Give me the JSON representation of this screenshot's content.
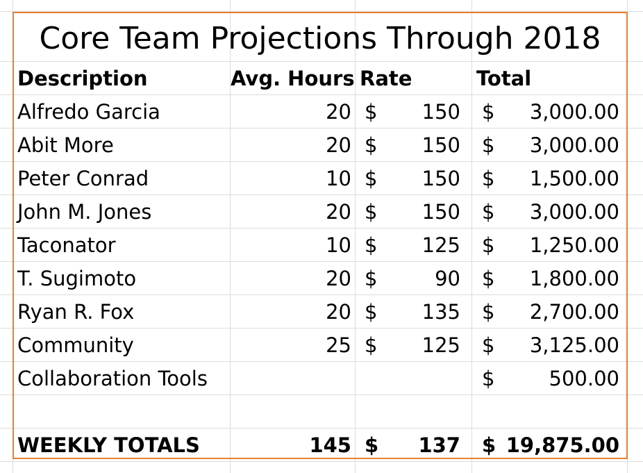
{
  "title": "Core Team Projections Through 2018",
  "colors": {
    "frame": "#ed7d31",
    "gridline": "#dcdcdc",
    "text": "#000000"
  },
  "headers": {
    "description": "Description",
    "avg_hours": "Avg. Hours",
    "rate": "Rate",
    "total": "Total"
  },
  "rows": [
    {
      "description": "Alfredo Garcia",
      "hours": "20",
      "rate_symbol": "$",
      "rate": "150",
      "total_symbol": "$",
      "total": "3,000.00"
    },
    {
      "description": "Abit More",
      "hours": "20",
      "rate_symbol": "$",
      "rate": "150",
      "total_symbol": "$",
      "total": "3,000.00"
    },
    {
      "description": "Peter Conrad",
      "hours": "10",
      "rate_symbol": "$",
      "rate": "150",
      "total_symbol": "$",
      "total": "1,500.00"
    },
    {
      "description": "John M. Jones",
      "hours": "20",
      "rate_symbol": "$",
      "rate": "150",
      "total_symbol": "$",
      "total": "3,000.00"
    },
    {
      "description": "Taconator",
      "hours": "10",
      "rate_symbol": "$",
      "rate": "125",
      "total_symbol": "$",
      "total": "1,250.00"
    },
    {
      "description": "T. Sugimoto",
      "hours": "20",
      "rate_symbol": "$",
      "rate": "90",
      "total_symbol": "$",
      "total": "1,800.00"
    },
    {
      "description": "Ryan R. Fox",
      "hours": "20",
      "rate_symbol": "$",
      "rate": "135",
      "total_symbol": "$",
      "total": "2,700.00"
    },
    {
      "description": "Community",
      "hours": "25",
      "rate_symbol": "$",
      "rate": "125",
      "total_symbol": "$",
      "total": "3,125.00"
    },
    {
      "description": "Collaboration Tools",
      "hours": "",
      "rate_symbol": "",
      "rate": "",
      "total_symbol": "$",
      "total": "500.00"
    }
  ],
  "totals": {
    "label": "WEEKLY TOTALS",
    "hours": "145",
    "rate_symbol": "$",
    "rate": "137",
    "total_symbol": "$",
    "total": "19,875.00"
  }
}
